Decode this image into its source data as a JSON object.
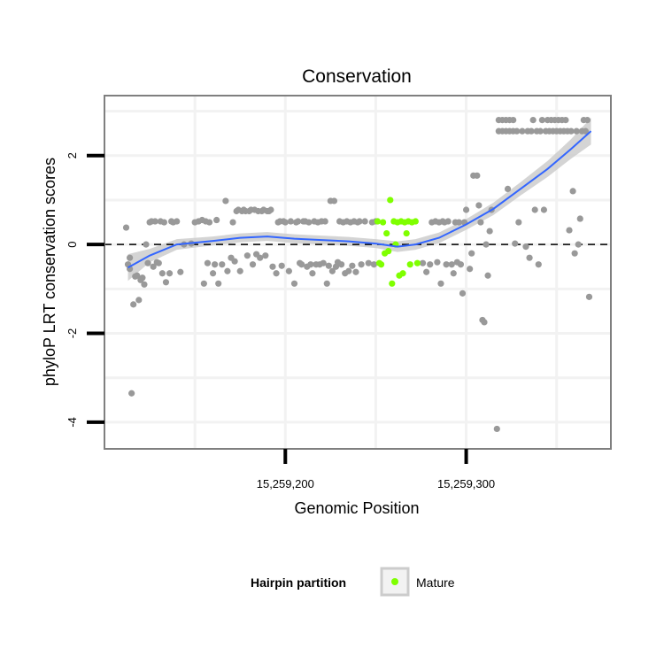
{
  "chart_data": {
    "type": "scatter",
    "title": "Conservation",
    "xlabel": "Genomic Position",
    "ylabel": "phyloP LRT conservation scores",
    "xlim": [
      15259100,
      15259380
    ],
    "ylim": [
      -4.6,
      3.35
    ],
    "x_ticks": [
      15259200,
      15259300
    ],
    "x_tick_labels": [
      "15,259,200",
      "15,259,300"
    ],
    "y_ticks": [
      -4,
      -2,
      0,
      2
    ],
    "y_tick_labels": [
      "-4",
      "-2",
      "0",
      "2"
    ],
    "reference_line": {
      "y": 0,
      "style": "dashed"
    },
    "grid": true,
    "colors": {
      "other": "#999999",
      "mature": "#7fff00",
      "smooth": "#3366ff",
      "band": "#cccccc",
      "panel_border": "#7f7f7f",
      "grid": "#f2f2f2"
    },
    "legend": {
      "title": "Hairpin partition",
      "position": "bottom",
      "entries": [
        {
          "label": "Mature",
          "color": "#7fff00"
        }
      ]
    },
    "series": [
      {
        "name": "",
        "color": "#999999",
        "points": [
          [
            15259112,
            0.38
          ],
          [
            15259113,
            -0.45
          ],
          [
            15259114,
            -0.3
          ],
          [
            15259114,
            -0.55
          ],
          [
            15259115,
            -3.35
          ],
          [
            15259116,
            -1.35
          ],
          [
            15259117,
            -0.72
          ],
          [
            15259118,
            -0.7
          ],
          [
            15259119,
            -1.25
          ],
          [
            15259120,
            -0.8
          ],
          [
            15259121,
            -0.75
          ],
          [
            15259122,
            -0.9
          ],
          [
            15259123,
            0.0
          ],
          [
            15259124,
            -0.42
          ],
          [
            15259125,
            0.5
          ],
          [
            15259126,
            0.52
          ],
          [
            15259127,
            -0.5
          ],
          [
            15259128,
            0.52
          ],
          [
            15259129,
            -0.4
          ],
          [
            15259130,
            -0.42
          ],
          [
            15259131,
            0.52
          ],
          [
            15259132,
            -0.65
          ],
          [
            15259133,
            0.5
          ],
          [
            15259134,
            -0.85
          ],
          [
            15259136,
            -0.65
          ],
          [
            15259137,
            0.52
          ],
          [
            15259138,
            0.5
          ],
          [
            15259140,
            0.52
          ],
          [
            15259142,
            -0.62
          ],
          [
            15259144,
            0.0
          ],
          [
            15259148,
            0.02
          ],
          [
            15259150,
            0.5
          ],
          [
            15259152,
            0.52
          ],
          [
            15259154,
            0.55
          ],
          [
            15259155,
            -0.88
          ],
          [
            15259156,
            0.52
          ],
          [
            15259157,
            -0.42
          ],
          [
            15259158,
            0.5
          ],
          [
            15259160,
            -0.65
          ],
          [
            15259161,
            -0.45
          ],
          [
            15259162,
            0.55
          ],
          [
            15259163,
            -0.88
          ],
          [
            15259165,
            -0.45
          ],
          [
            15259167,
            0.98
          ],
          [
            15259168,
            -0.6
          ],
          [
            15259170,
            -0.3
          ],
          [
            15259171,
            0.5
          ],
          [
            15259172,
            -0.38
          ],
          [
            15259173,
            0.75
          ],
          [
            15259174,
            0.78
          ],
          [
            15259175,
            -0.6
          ],
          [
            15259176,
            0.75
          ],
          [
            15259177,
            0.78
          ],
          [
            15259178,
            0.75
          ],
          [
            15259179,
            -0.25
          ],
          [
            15259180,
            0.75
          ],
          [
            15259181,
            0.78
          ],
          [
            15259182,
            -0.45
          ],
          [
            15259183,
            0.78
          ],
          [
            15259184,
            -0.22
          ],
          [
            15259185,
            0.75
          ],
          [
            15259186,
            -0.3
          ],
          [
            15259187,
            0.75
          ],
          [
            15259188,
            0.78
          ],
          [
            15259189,
            -0.25
          ],
          [
            15259190,
            0.75
          ],
          [
            15259191,
            0.75
          ],
          [
            15259192,
            0.78
          ],
          [
            15259193,
            -0.5
          ],
          [
            15259195,
            -0.65
          ],
          [
            15259196,
            0.5
          ],
          [
            15259197,
            0.52
          ],
          [
            15259198,
            -0.48
          ],
          [
            15259199,
            0.52
          ],
          [
            15259200,
            0.5
          ],
          [
            15259202,
            -0.6
          ],
          [
            15259203,
            0.52
          ],
          [
            15259205,
            -0.88
          ],
          [
            15259206,
            0.5
          ],
          [
            15259207,
            0.52
          ],
          [
            15259208,
            -0.42
          ],
          [
            15259209,
            -0.45
          ],
          [
            15259210,
            0.52
          ],
          [
            15259211,
            0.52
          ],
          [
            15259212,
            -0.5
          ],
          [
            15259213,
            0.5
          ],
          [
            15259214,
            -0.45
          ],
          [
            15259215,
            -0.65
          ],
          [
            15259216,
            0.52
          ],
          [
            15259217,
            -0.45
          ],
          [
            15259218,
            0.5
          ],
          [
            15259219,
            -0.45
          ],
          [
            15259220,
            0.52
          ],
          [
            15259221,
            -0.42
          ],
          [
            15259222,
            0.52
          ],
          [
            15259223,
            -0.88
          ],
          [
            15259224,
            -0.48
          ],
          [
            15259225,
            0.98
          ],
          [
            15259226,
            -0.6
          ],
          [
            15259227,
            0.98
          ],
          [
            15259228,
            -0.5
          ],
          [
            15259229,
            -0.4
          ],
          [
            15259230,
            0.52
          ],
          [
            15259231,
            -0.45
          ],
          [
            15259232,
            0.5
          ],
          [
            15259233,
            -0.65
          ],
          [
            15259234,
            0.52
          ],
          [
            15259235,
            -0.6
          ],
          [
            15259236,
            0.5
          ],
          [
            15259237,
            -0.48
          ],
          [
            15259238,
            0.52
          ],
          [
            15259239,
            -0.62
          ],
          [
            15259240,
            0.5
          ],
          [
            15259241,
            0.52
          ],
          [
            15259242,
            -0.45
          ],
          [
            15259244,
            0.52
          ],
          [
            15259246,
            -0.42
          ],
          [
            15259248,
            0.5
          ],
          [
            15259249,
            -0.45
          ],
          [
            15259250,
            0.52
          ],
          [
            15259276,
            -0.42
          ],
          [
            15259278,
            -0.62
          ],
          [
            15259280,
            -0.45
          ],
          [
            15259281,
            0.5
          ],
          [
            15259283,
            0.52
          ],
          [
            15259284,
            -0.4
          ],
          [
            15259285,
            0.5
          ],
          [
            15259286,
            -0.88
          ],
          [
            15259287,
            0.52
          ],
          [
            15259288,
            0.5
          ],
          [
            15259289,
            -0.45
          ],
          [
            15259290,
            0.52
          ],
          [
            15259292,
            -0.45
          ],
          [
            15259293,
            -0.65
          ],
          [
            15259294,
            0.5
          ],
          [
            15259295,
            -0.4
          ],
          [
            15259296,
            0.5
          ],
          [
            15259297,
            -0.45
          ],
          [
            15259298,
            -1.1
          ],
          [
            15259299,
            0.5
          ],
          [
            15259300,
            0.78
          ],
          [
            15259302,
            -0.55
          ],
          [
            15259303,
            -0.2
          ],
          [
            15259304,
            1.55
          ],
          [
            15259306,
            1.55
          ],
          [
            15259307,
            0.88
          ],
          [
            15259308,
            0.5
          ],
          [
            15259309,
            -1.7
          ],
          [
            15259310,
            -1.75
          ],
          [
            15259311,
            0.0
          ],
          [
            15259312,
            -0.7
          ],
          [
            15259313,
            0.3
          ],
          [
            15259314,
            0.78
          ],
          [
            15259317,
            -4.15
          ],
          [
            15259318,
            2.55
          ],
          [
            15259318,
            2.8
          ],
          [
            15259320,
            2.55
          ],
          [
            15259320,
            2.8
          ],
          [
            15259322,
            2.55
          ],
          [
            15259322,
            2.8
          ],
          [
            15259323,
            1.25
          ],
          [
            15259324,
            2.55
          ],
          [
            15259324,
            2.8
          ],
          [
            15259326,
            2.55
          ],
          [
            15259326,
            2.8
          ],
          [
            15259327,
            0.02
          ],
          [
            15259328,
            2.55
          ],
          [
            15259329,
            0.5
          ],
          [
            15259331,
            2.55
          ],
          [
            15259333,
            -0.05
          ],
          [
            15259334,
            2.55
          ],
          [
            15259335,
            -0.3
          ],
          [
            15259336,
            2.55
          ],
          [
            15259337,
            2.8
          ],
          [
            15259338,
            0.78
          ],
          [
            15259339,
            2.55
          ],
          [
            15259340,
            -0.45
          ],
          [
            15259341,
            2.55
          ],
          [
            15259342,
            2.8
          ],
          [
            15259343,
            0.78
          ],
          [
            15259344,
            2.55
          ],
          [
            15259345,
            2.8
          ],
          [
            15259346,
            2.55
          ],
          [
            15259347,
            2.8
          ],
          [
            15259348,
            2.55
          ],
          [
            15259349,
            2.8
          ],
          [
            15259350,
            2.55
          ],
          [
            15259351,
            2.8
          ],
          [
            15259352,
            2.55
          ],
          [
            15259353,
            2.8
          ],
          [
            15259354,
            2.55
          ],
          [
            15259355,
            2.8
          ],
          [
            15259356,
            2.55
          ],
          [
            15259357,
            0.32
          ],
          [
            15259358,
            2.55
          ],
          [
            15259359,
            1.2
          ],
          [
            15259360,
            -0.2
          ],
          [
            15259361,
            2.55
          ],
          [
            15259362,
            0.0
          ],
          [
            15259363,
            0.58
          ],
          [
            15259364,
            2.55
          ],
          [
            15259365,
            2.8
          ],
          [
            15259366,
            2.55
          ],
          [
            15259367,
            2.8
          ],
          [
            15259368,
            -1.18
          ]
        ]
      },
      {
        "name": "Mature",
        "color": "#7fff00",
        "points": [
          [
            15259251,
            0.52
          ],
          [
            15259252,
            -0.42
          ],
          [
            15259253,
            -0.45
          ],
          [
            15259254,
            0.5
          ],
          [
            15259255,
            -0.2
          ],
          [
            15259256,
            0.25
          ],
          [
            15259257,
            -0.15
          ],
          [
            15259258,
            1.0
          ],
          [
            15259259,
            -0.88
          ],
          [
            15259260,
            0.52
          ],
          [
            15259261,
            0.0
          ],
          [
            15259262,
            0.5
          ],
          [
            15259263,
            -0.7
          ],
          [
            15259264,
            0.52
          ],
          [
            15259265,
            -0.65
          ],
          [
            15259266,
            0.5
          ],
          [
            15259267,
            0.25
          ],
          [
            15259268,
            0.52
          ],
          [
            15259269,
            -0.45
          ],
          [
            15259270,
            0.5
          ],
          [
            15259272,
            0.52
          ],
          [
            15259273,
            -0.42
          ]
        ]
      }
    ],
    "smooth": {
      "method": "loess",
      "color": "#3366ff",
      "points": [
        [
          15259113,
          -0.52
        ],
        [
          15259125,
          -0.25
        ],
        [
          15259140,
          0.0
        ],
        [
          15259160,
          0.08
        ],
        [
          15259175,
          0.15
        ],
        [
          15259190,
          0.18
        ],
        [
          15259205,
          0.13
        ],
        [
          15259220,
          0.1
        ],
        [
          15259235,
          0.07
        ],
        [
          15259250,
          0.02
        ],
        [
          15259262,
          -0.05
        ],
        [
          15259272,
          0.0
        ],
        [
          15259285,
          0.15
        ],
        [
          15259300,
          0.45
        ],
        [
          15259315,
          0.8
        ],
        [
          15259330,
          1.25
        ],
        [
          15259345,
          1.7
        ],
        [
          15259358,
          2.15
        ],
        [
          15259369,
          2.55
        ]
      ],
      "band_halfwidth": [
        0.3,
        0.15,
        0.12,
        0.1,
        0.1,
        0.1,
        0.1,
        0.1,
        0.1,
        0.1,
        0.12,
        0.12,
        0.12,
        0.12,
        0.14,
        0.15,
        0.18,
        0.22,
        0.3
      ]
    }
  }
}
